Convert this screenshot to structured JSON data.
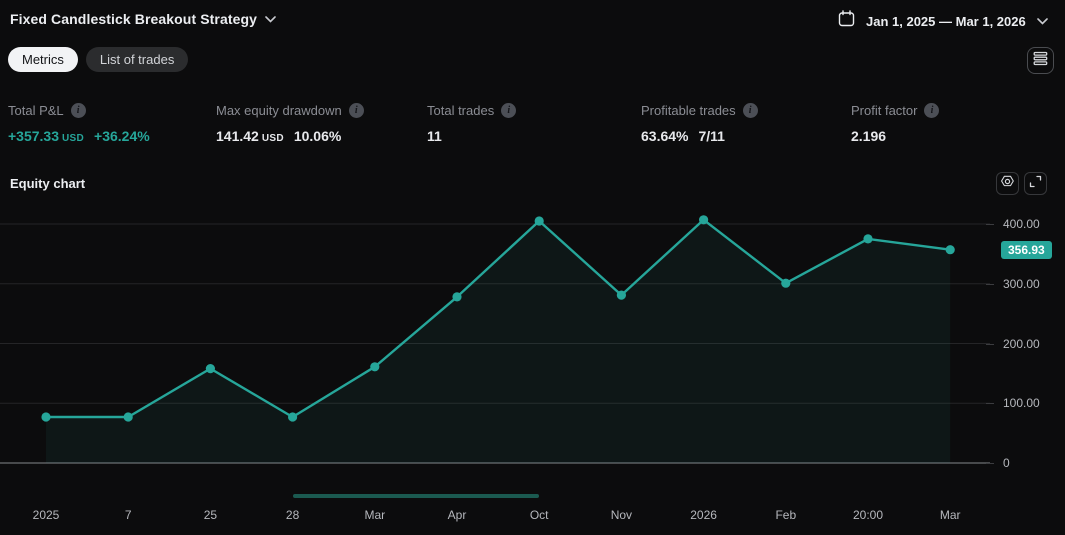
{
  "header": {
    "title": "Fixed Candlestick Breakout Strategy",
    "date_range": "Jan 1, 2025 — Mar 1, 2026"
  },
  "tabs": [
    {
      "label": "Metrics",
      "active": true
    },
    {
      "label": "List of trades",
      "active": false
    }
  ],
  "metrics": [
    {
      "label": "Total P&L",
      "value": "+357.33",
      "unit": "USD",
      "extra": "+36.24%",
      "positive": true
    },
    {
      "label": "Max equity drawdown",
      "value": "141.42",
      "unit": "USD",
      "extra": "10.06%"
    },
    {
      "label": "Total trades",
      "value": "11"
    },
    {
      "label": "Profitable trades",
      "value": "63.64%",
      "extra": "7/11"
    },
    {
      "label": "Profit factor",
      "value": "2.196"
    }
  ],
  "section": {
    "title": "Equity chart"
  },
  "chart_data": {
    "type": "line",
    "title": "Equity chart",
    "x": [
      "2025",
      "7",
      "25",
      "28",
      "Mar",
      "Apr",
      "Oct",
      "Nov",
      "2026",
      "Feb",
      "20:00",
      "Mar"
    ],
    "values": [
      77,
      77,
      158,
      77,
      161,
      278,
      405,
      281,
      407,
      301,
      375,
      356.93
    ],
    "last_value_label": "356.93",
    "y_ticks": [
      {
        "label": "400.00",
        "value": 400
      },
      {
        "label": "300.00",
        "value": 300
      },
      {
        "label": "200.00",
        "value": 200
      },
      {
        "label": "100.00",
        "value": 100
      },
      {
        "label": "0",
        "value": 0
      }
    ],
    "ylim": [
      0,
      432
    ],
    "grid": true,
    "legend": "none",
    "scrollbar_range_points": [
      3,
      6
    ]
  },
  "colors": {
    "accent": "#26a69a",
    "area_fill": "rgba(38,166,154,0.07)",
    "scrollbar": "#1b5a50",
    "gridline": "#252527",
    "zero_line": "#85878c"
  }
}
